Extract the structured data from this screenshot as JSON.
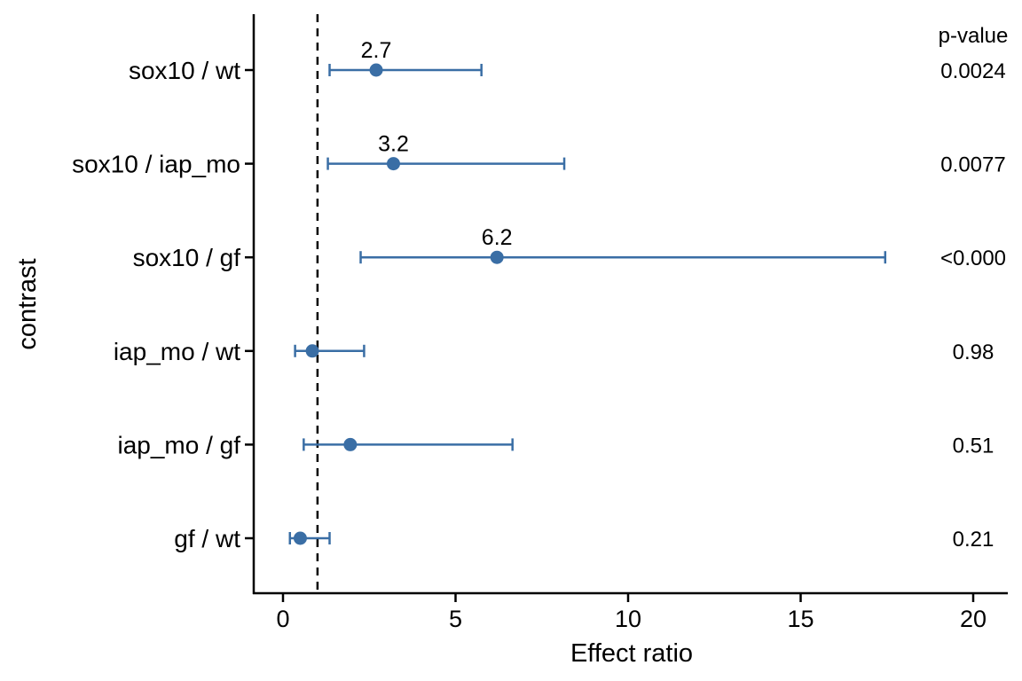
{
  "chart_data": {
    "type": "scatter",
    "subtype": "forest-plot",
    "xlabel": "Effect ratio",
    "ylabel": "contrast",
    "xlim": [
      -0.85,
      21
    ],
    "xticks": [
      0,
      5,
      10,
      15,
      20
    ],
    "xtick_labels": [
      "0",
      "5",
      "10",
      "15",
      "20"
    ],
    "reference_line": 1,
    "pvalue_header": "p-value",
    "point_color": "#3A6EA5",
    "rows": [
      {
        "contrast": "sox10 / wt",
        "estimate": 2.7,
        "lower": 1.35,
        "upper": 5.75,
        "estimate_label": "2.7",
        "p_value": "0.0024"
      },
      {
        "contrast": "sox10 / iap_mo",
        "estimate": 3.2,
        "lower": 1.3,
        "upper": 8.15,
        "estimate_label": "3.2",
        "p_value": "0.0077"
      },
      {
        "contrast": "sox10 / gf",
        "estimate": 6.2,
        "lower": 2.25,
        "upper": 17.45,
        "estimate_label": "6.2",
        "p_value": "<0.000"
      },
      {
        "contrast": "iap_mo / wt",
        "estimate": 0.85,
        "lower": 0.35,
        "upper": 2.35,
        "estimate_label": "",
        "p_value": "0.98"
      },
      {
        "contrast": "iap_mo / gf",
        "estimate": 1.95,
        "lower": 0.6,
        "upper": 6.65,
        "estimate_label": "",
        "p_value": "0.51"
      },
      {
        "contrast": "gf / wt",
        "estimate": 0.5,
        "lower": 0.2,
        "upper": 1.35,
        "estimate_label": "",
        "p_value": "0.21"
      }
    ]
  }
}
